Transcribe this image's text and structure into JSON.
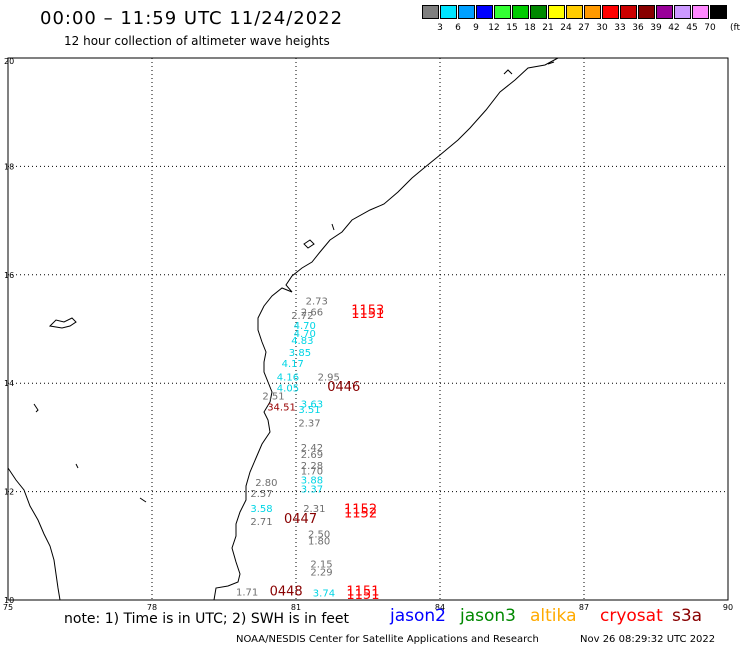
{
  "header": {
    "title": "00:00 – 11:59 UTC 11/24/2022",
    "subtitle": "12 hour collection of altimeter wave heights"
  },
  "legend": {
    "unit": "(ft)",
    "items": [
      {
        "label": "3",
        "color": "#7f7f7f"
      },
      {
        "label": "6",
        "color": "#00e5ff"
      },
      {
        "label": "9",
        "color": "#00a0ff"
      },
      {
        "label": "12",
        "color": "#0000ff"
      },
      {
        "label": "15",
        "color": "#33ff33"
      },
      {
        "label": "18",
        "color": "#00cc00"
      },
      {
        "label": "21",
        "color": "#008800"
      },
      {
        "label": "24",
        "color": "#ffff00"
      },
      {
        "label": "27",
        "color": "#ffcc00"
      },
      {
        "label": "30",
        "color": "#ff9900"
      },
      {
        "label": "33",
        "color": "#ff0000"
      },
      {
        "label": "36",
        "color": "#cc0000"
      },
      {
        "label": "39",
        "color": "#880000"
      },
      {
        "label": "42",
        "color": "#990099"
      },
      {
        "label": "45",
        "color": "#cc99ff"
      },
      {
        "label": "70",
        "color": "#ff88ff"
      },
      {
        "label": "",
        "color": "#000000"
      }
    ]
  },
  "map": {
    "lon_ticks": [
      "75",
      "78",
      "81",
      "84",
      "87",
      "90"
    ],
    "lat_ticks": [
      "20",
      "18",
      "16",
      "14",
      "12",
      "10"
    ],
    "lon_range": [
      75,
      90
    ],
    "lat_range": [
      10,
      20
    ],
    "values": [
      {
        "text": "2.73",
        "lon": 81.2,
        "lat": 15.45,
        "color": "#6f6f6f"
      },
      {
        "text": "2.66",
        "lon": 81.1,
        "lat": 15.25,
        "color": "#6f6f6f"
      },
      {
        "text": "2.72",
        "lon": 80.9,
        "lat": 15.18,
        "color": "#6f6f6f"
      },
      {
        "text": "4.70",
        "lon": 80.95,
        "lat": 15.0,
        "color": "#00d5e5"
      },
      {
        "text": "4.70",
        "lon": 80.95,
        "lat": 14.85,
        "color": "#00d5e5"
      },
      {
        "text": "4.83",
        "lon": 80.9,
        "lat": 14.72,
        "color": "#00d5e5"
      },
      {
        "text": "3.85",
        "lon": 80.85,
        "lat": 14.5,
        "color": "#00d5e5"
      },
      {
        "text": "4.17",
        "lon": 80.7,
        "lat": 14.3,
        "color": "#00d5e5"
      },
      {
        "text": "4.16",
        "lon": 80.6,
        "lat": 14.05,
        "color": "#00d5e5"
      },
      {
        "text": "2.95",
        "lon": 81.45,
        "lat": 14.05,
        "color": "#6f6f6f"
      },
      {
        "text": "4.05",
        "lon": 80.6,
        "lat": 13.85,
        "color": "#00d5e5"
      },
      {
        "text": "2.51",
        "lon": 80.3,
        "lat": 13.7,
        "color": "#6f6f6f"
      },
      {
        "text": "3.63",
        "lon": 81.1,
        "lat": 13.55,
        "color": "#00d5e5"
      },
      {
        "text": "3.51",
        "lon": 81.05,
        "lat": 13.45,
        "color": "#00d5e5"
      },
      {
        "text": "34.51",
        "lon": 80.4,
        "lat": 13.5,
        "color": "#990000"
      },
      {
        "text": "2.37",
        "lon": 81.05,
        "lat": 13.2,
        "color": "#6f6f6f"
      },
      {
        "text": "2.42",
        "lon": 81.1,
        "lat": 12.75,
        "color": "#6f6f6f"
      },
      {
        "text": "2.69",
        "lon": 81.1,
        "lat": 12.62,
        "color": "#6f6f6f"
      },
      {
        "text": "2.28",
        "lon": 81.1,
        "lat": 12.42,
        "color": "#6f6f6f"
      },
      {
        "text": "1.70",
        "lon": 81.1,
        "lat": 12.32,
        "color": "#6f6f6f"
      },
      {
        "text": "3.88",
        "lon": 81.1,
        "lat": 12.15,
        "color": "#00d5e5"
      },
      {
        "text": "3.37",
        "lon": 81.1,
        "lat": 11.98,
        "color": "#00d5e5"
      },
      {
        "text": "2.80",
        "lon": 80.15,
        "lat": 12.1,
        "color": "#6f6f6f"
      },
      {
        "text": "2.57",
        "lon": 80.05,
        "lat": 11.9,
        "color": "#6f6f6f"
      },
      {
        "text": "3.58",
        "lon": 80.05,
        "lat": 11.62,
        "color": "#00d5e5"
      },
      {
        "text": "2.31",
        "lon": 81.15,
        "lat": 11.62,
        "color": "#6f6f6f"
      },
      {
        "text": "2.71",
        "lon": 80.05,
        "lat": 11.38,
        "color": "#6f6f6f"
      },
      {
        "text": "2.50",
        "lon": 81.25,
        "lat": 11.15,
        "color": "#6f6f6f"
      },
      {
        "text": "1.80",
        "lon": 81.25,
        "lat": 11.02,
        "color": "#6f6f6f"
      },
      {
        "text": "2.15",
        "lon": 81.3,
        "lat": 10.6,
        "color": "#6f6f6f"
      },
      {
        "text": "2.29",
        "lon": 81.3,
        "lat": 10.45,
        "color": "#6f6f6f"
      },
      {
        "text": "1.71",
        "lon": 79.75,
        "lat": 10.08,
        "color": "#6f6f6f"
      },
      {
        "text": "3.74",
        "lon": 81.35,
        "lat": 10.06,
        "color": "#00d5e5"
      }
    ],
    "time_labels": [
      {
        "text": "1151",
        "lon": 82.15,
        "lat": 15.2,
        "color": "#ff0000"
      },
      {
        "text": "1153",
        "lon": 82.15,
        "lat": 15.27,
        "color": "#ff0000"
      },
      {
        "text": "0446",
        "lon": 81.65,
        "lat": 13.86,
        "color": "#880000"
      },
      {
        "text": "1152",
        "lon": 82.0,
        "lat": 11.6,
        "color": "#ff0000"
      },
      {
        "text": "1152",
        "lon": 82.0,
        "lat": 11.52,
        "color": "#ff0000"
      },
      {
        "text": "0447",
        "lon": 80.75,
        "lat": 11.42,
        "color": "#880000"
      },
      {
        "text": "0448",
        "lon": 80.45,
        "lat": 10.08,
        "color": "#880000"
      },
      {
        "text": "1151",
        "lon": 82.05,
        "lat": 10.08,
        "color": "#ff0000"
      },
      {
        "text": "1151",
        "lon": 82.05,
        "lat": 10.02,
        "color": "#ff0000"
      }
    ]
  },
  "footer": {
    "note": "note: 1) Time is in UTC; 2) SWH is in feet",
    "satellites": [
      {
        "name": "jason2",
        "color": "#0000ff"
      },
      {
        "name": "jason3",
        "color": "#008800"
      },
      {
        "name": "altika",
        "color": "#ffaa00"
      },
      {
        "name": "cryosat",
        "color": "#ff0000"
      },
      {
        "name": "s3a",
        "color": "#880000"
      }
    ],
    "credit": "NOAA/NESDIS Center for Satellite Applications and Research",
    "timestamp": "Nov 26 08:29:32 UTC 2022"
  }
}
